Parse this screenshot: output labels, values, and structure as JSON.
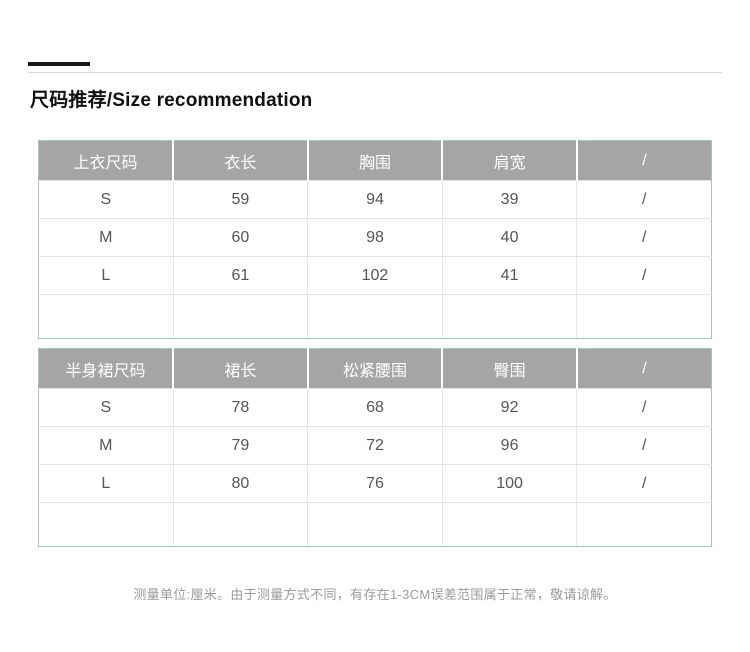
{
  "page": {
    "title": "尺码推荐/Size recommendation",
    "note": "测量单位:厘米。由于测量方式不同，有存在1-3CM误差范围属于正常，敬请谅解。"
  },
  "colors": {
    "header_bg": "#a5a5a5",
    "header_text": "#ffffff",
    "body_text": "#555555",
    "table_border": "#a2c6c6",
    "grid_line": "#e4e4e4",
    "note_text": "#9b9b9b",
    "accent_bar": "#1a1a1a"
  },
  "tables": [
    {
      "name": "top-size-table",
      "headers": [
        "上衣尺码",
        "衣长",
        "胸围",
        "肩宽",
        "/"
      ],
      "rows": [
        [
          "S",
          "59",
          "94",
          "39",
          "/"
        ],
        [
          "M",
          "60",
          "98",
          "40",
          "/"
        ],
        [
          "L",
          "61",
          "102",
          "41",
          "/"
        ],
        [
          "",
          "",
          "",
          "",
          ""
        ]
      ]
    },
    {
      "name": "skirt-size-table",
      "headers": [
        "半身裙尺码",
        "裙长",
        "松紧腰围",
        "臀围",
        "/"
      ],
      "rows": [
        [
          "S",
          "78",
          "68",
          "92",
          "/"
        ],
        [
          "M",
          "79",
          "72",
          "96",
          "/"
        ],
        [
          "L",
          "80",
          "76",
          "100",
          "/"
        ],
        [
          "",
          "",
          "",
          "",
          ""
        ]
      ]
    }
  ]
}
